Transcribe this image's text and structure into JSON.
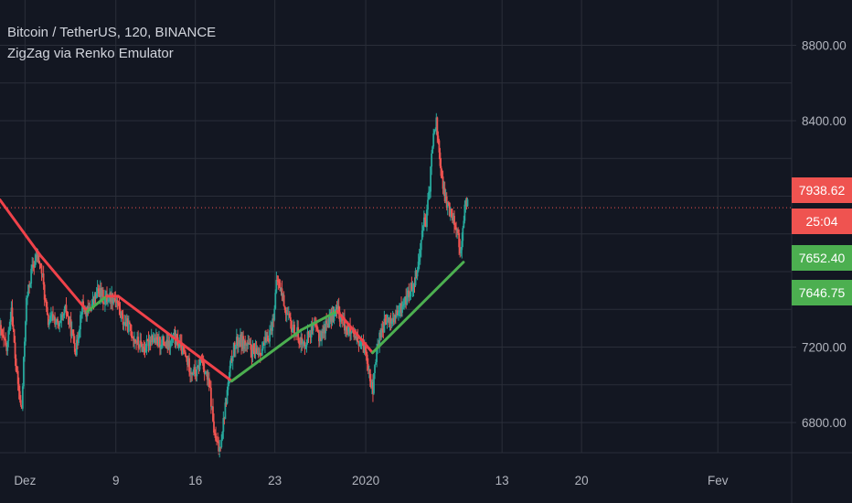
{
  "chart_header": {
    "symbol_line": "Bitcoin / TetherUS, 120, BINANCE",
    "indicator_line": "ZigZag via Renko Emulator"
  },
  "colors": {
    "background": "#131722",
    "grid": "#2a2e39",
    "up": "#26a69a",
    "down": "#ef5350",
    "zigzag_down": "#f0424a",
    "zigzag_up": "#4caf50",
    "price_line": "#ef5350",
    "axis_text": "#b2b5be"
  },
  "chart_data": {
    "type": "candlestick",
    "title": "Bitcoin / TetherUS, 120, BINANCE",
    "indicator": "ZigZag via Renko Emulator",
    "x_ticks": [
      "Dez",
      "9",
      "16",
      "23",
      "2020",
      "13",
      "20",
      "Fev"
    ],
    "x_tick_days": [
      0,
      8,
      15,
      22,
      30,
      42,
      49,
      61
    ],
    "y_ticks": [
      6800,
      7200,
      8400,
      8800
    ],
    "ylim": [
      6640,
      9040
    ],
    "xlim_days": [
      -2.2,
      67.5
    ],
    "grid": true,
    "last_price_line": 7938.62,
    "price_badges": [
      {
        "label": "7938.62",
        "value": 7938.62,
        "color": "#ef5350"
      },
      {
        "label": "25:04",
        "value": 7847,
        "color": "#ef5350"
      },
      {
        "label": "7652.40",
        "value": 7652.4,
        "color": "#4caf50"
      },
      {
        "label": "7646.75",
        "value": 7646.75,
        "color": "#4caf50"
      }
    ],
    "zigzag": [
      {
        "day": -2.2,
        "price": 7980,
        "dir": "down"
      },
      {
        "day": 1.3,
        "price": 7690,
        "dir": "down"
      },
      {
        "day": 5.5,
        "price": 7390,
        "dir": "down"
      },
      {
        "day": 7.2,
        "price": 7470,
        "dir": "up"
      },
      {
        "day": 8.2,
        "price": 7470,
        "dir": "down"
      },
      {
        "day": 18.2,
        "price": 7020,
        "dir": "down"
      },
      {
        "day": 24.3,
        "price": 7290,
        "dir": "up"
      },
      {
        "day": 27.5,
        "price": 7390,
        "dir": "up"
      },
      {
        "day": 27.5,
        "price": 7390,
        "dir": "down"
      },
      {
        "day": 30.6,
        "price": 7170,
        "dir": "down"
      },
      {
        "day": 38.6,
        "price": 7650,
        "dir": "up"
      }
    ],
    "price_path": [
      [
        -2.2,
        7290
      ],
      [
        -1.6,
        7180
      ],
      [
        -1.2,
        7420
      ],
      [
        -0.8,
        7090
      ],
      [
        -0.3,
        6850
      ],
      [
        0.1,
        7430
      ],
      [
        0.6,
        7610
      ],
      [
        1.1,
        7690
      ],
      [
        1.5,
        7590
      ],
      [
        2.0,
        7330
      ],
      [
        2.5,
        7360
      ],
      [
        3.0,
        7300
      ],
      [
        3.6,
        7400
      ],
      [
        4.1,
        7280
      ],
      [
        4.5,
        7180
      ],
      [
        5.0,
        7420
      ],
      [
        5.5,
        7380
      ],
      [
        6.0,
        7440
      ],
      [
        6.5,
        7500
      ],
      [
        7.0,
        7450
      ],
      [
        7.5,
        7470
      ],
      [
        8.0,
        7460
      ],
      [
        8.6,
        7340
      ],
      [
        9.1,
        7310
      ],
      [
        9.6,
        7250
      ],
      [
        10.1,
        7210
      ],
      [
        10.6,
        7190
      ],
      [
        11.1,
        7260
      ],
      [
        11.6,
        7220
      ],
      [
        12.1,
        7230
      ],
      [
        12.6,
        7200
      ],
      [
        13.1,
        7250
      ],
      [
        13.6,
        7210
      ],
      [
        14.1,
        7150
      ],
      [
        14.6,
        7080
      ],
      [
        15.1,
        7060
      ],
      [
        15.5,
        7140
      ],
      [
        15.9,
        7070
      ],
      [
        16.3,
        6960
      ],
      [
        16.7,
        6720
      ],
      [
        17.1,
        6650
      ],
      [
        17.5,
        6820
      ],
      [
        17.9,
        7010
      ],
      [
        18.3,
        7180
      ],
      [
        18.8,
        7240
      ],
      [
        19.3,
        7220
      ],
      [
        19.8,
        7190
      ],
      [
        20.3,
        7160
      ],
      [
        20.8,
        7190
      ],
      [
        21.3,
        7230
      ],
      [
        21.8,
        7330
      ],
      [
        22.2,
        7560
      ],
      [
        22.6,
        7490
      ],
      [
        23.0,
        7380
      ],
      [
        23.5,
        7300
      ],
      [
        24.0,
        7270
      ],
      [
        24.5,
        7200
      ],
      [
        25.0,
        7280
      ],
      [
        25.5,
        7300
      ],
      [
        26.0,
        7250
      ],
      [
        26.5,
        7320
      ],
      [
        27.0,
        7360
      ],
      [
        27.5,
        7400
      ],
      [
        28.0,
        7330
      ],
      [
        28.5,
        7290
      ],
      [
        29.0,
        7240
      ],
      [
        29.5,
        7210
      ],
      [
        30.0,
        7190
      ],
      [
        30.3,
        7080
      ],
      [
        30.6,
        6960
      ],
      [
        31.0,
        7200
      ],
      [
        31.4,
        7300
      ],
      [
        31.8,
        7330
      ],
      [
        32.3,
        7340
      ],
      [
        32.8,
        7370
      ],
      [
        33.3,
        7430
      ],
      [
        33.8,
        7480
      ],
      [
        34.3,
        7560
      ],
      [
        34.8,
        7700
      ],
      [
        35.0,
        7880
      ],
      [
        35.3,
        7850
      ],
      [
        35.6,
        8030
      ],
      [
        35.9,
        8290
      ],
      [
        36.2,
        8400
      ],
      [
        36.5,
        8210
      ],
      [
        36.8,
        8030
      ],
      [
        37.1,
        7970
      ],
      [
        37.4,
        7920
      ],
      [
        37.7,
        7900
      ],
      [
        38.0,
        7830
      ],
      [
        38.3,
        7720
      ],
      [
        38.5,
        7760
      ],
      [
        38.8,
        8000
      ],
      [
        39.0,
        7940
      ]
    ]
  }
}
